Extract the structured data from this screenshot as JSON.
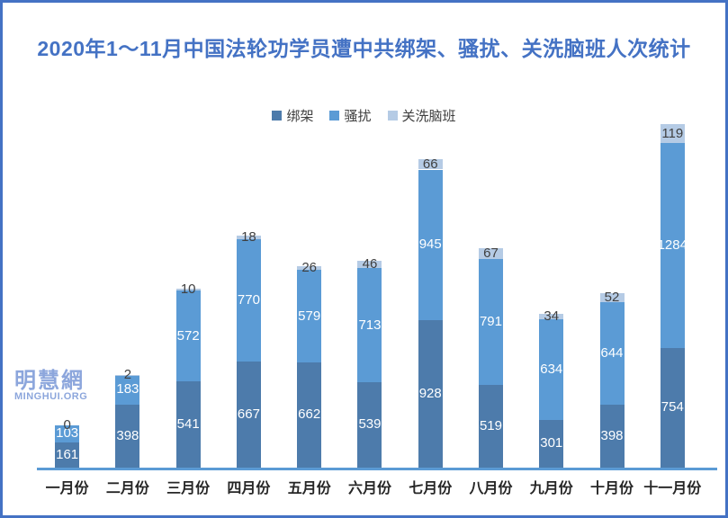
{
  "frame": {
    "border_color": "#4472c4",
    "background_color": "#ffffff"
  },
  "title": {
    "text": "2020年1～11月中国法轮功学员遭中共绑架、骚扰、关洗脑班人次统计",
    "color": "#4472c4"
  },
  "watermark": {
    "line1": "明慧網",
    "line2": "MINGHUI.ORG",
    "color": "#8ca6dc"
  },
  "chart_data": {
    "type": "bar",
    "stacked": true,
    "title": "2020年1～11月中国法轮功学员遭中共绑架、骚扰、关洗脑班人次统计",
    "categories": [
      "一月份",
      "二月份",
      "三月份",
      "四月份",
      "五月份",
      "六月份",
      "七月份",
      "八月份",
      "九月份",
      "十月份",
      "十一月份"
    ],
    "series": [
      {
        "name": "绑架",
        "color": "#4d7bab",
        "values": [
          161,
          398,
          541,
          667,
          662,
          539,
          928,
          519,
          301,
          398,
          754
        ]
      },
      {
        "name": "骚扰",
        "color": "#5b9bd5",
        "values": [
          103,
          183,
          572,
          770,
          579,
          713,
          945,
          791,
          634,
          644,
          1284
        ]
      },
      {
        "name": "关洗脑班",
        "color": "#b5cbe5",
        "values": [
          0,
          2,
          10,
          18,
          26,
          46,
          66,
          67,
          34,
          52,
          119
        ]
      }
    ],
    "xlabel": "",
    "ylabel": "",
    "grid": false,
    "legend_position": "top",
    "axis_line_color": "#5b9bd5",
    "value_label_inside_color": "#ffffff",
    "value_label_outside_color": "#404040",
    "x_tick_label_color": "#262626"
  }
}
